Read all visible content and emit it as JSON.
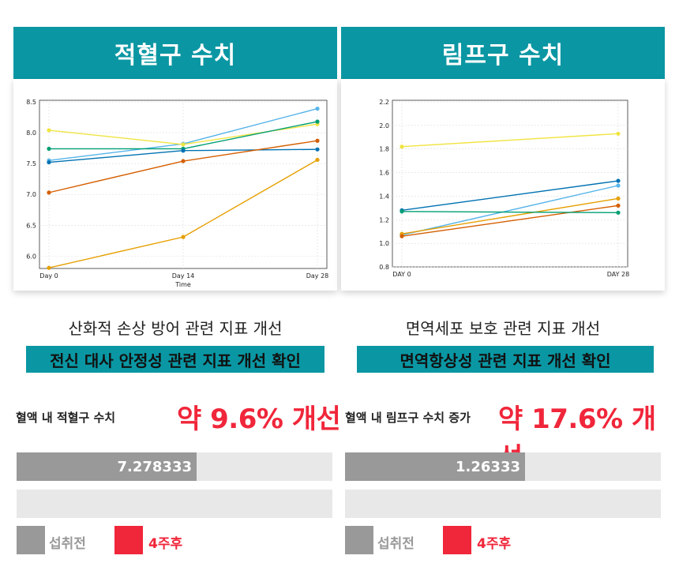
{
  "left": {
    "title": "적혈구 수치",
    "caption": "산화적 손상 방어 관련 지표 개선",
    "highlight": "전신 대사 안정성 관련 지표 개선 확인",
    "metric_label": "혈액 내 적혈구 수치",
    "metric_value": "약 9.6% 개선",
    "bar_before_label": "7.278333",
    "bar_before_fraction": 0.57,
    "bar_after_fraction": 0,
    "legend_before": "섭취전",
    "legend_after": "4주후"
  },
  "right": {
    "title": "림프구 수치",
    "caption": "면역세포 보호 관련 지표 개선",
    "highlight": "면역항상성 관련 지표 개선 확인",
    "metric_label": "혈액 내 림프구 수치 증가",
    "metric_value": "약 17.6% 개선",
    "bar_before_label": "1.26333",
    "bar_before_fraction": 0.57,
    "bar_after_fraction": 0,
    "legend_before": "섭취전",
    "legend_after": "4주후"
  },
  "colors": {
    "header": "#0a97a3",
    "accent": "#f0263a",
    "bar_before": "#999999",
    "bar_track": "#e8e8e8"
  },
  "chart_data": [
    {
      "type": "line",
      "categories": [
        "Day 0",
        "Day 14",
        "Day 28"
      ],
      "xlabel": "Time",
      "ylabel": "",
      "ylim": [
        5.8,
        8.5
      ],
      "yticks": [
        "6.0",
        "6.5",
        "7.0",
        "7.5",
        "8.0",
        "8.5"
      ],
      "grid": true,
      "series": [
        {
          "color": "#56b4e9",
          "values": [
            7.55,
            7.82,
            8.39
          ]
        },
        {
          "color": "#f0e442",
          "values": [
            8.04,
            7.81,
            8.14
          ]
        },
        {
          "color": "#009e73",
          "values": [
            7.74,
            7.74,
            8.18
          ]
        },
        {
          "color": "#0072b2",
          "values": [
            7.52,
            7.71,
            7.73
          ]
        },
        {
          "color": "#d55e00",
          "values": [
            7.03,
            7.54,
            7.87
          ]
        },
        {
          "color": "#e69f00",
          "values": [
            5.81,
            6.31,
            7.56
          ]
        }
      ]
    },
    {
      "type": "line",
      "categories": [
        "DAY 0",
        "DAY 28"
      ],
      "xlabel": "",
      "ylabel": "",
      "ylim": [
        0.8,
        2.2
      ],
      "yticks": [
        "0.8",
        "1.0",
        "1.2",
        "1.4",
        "1.6",
        "1.8",
        "2.0",
        "2.2"
      ],
      "grid": true,
      "series": [
        {
          "color": "#f0e442",
          "values": [
            1.82,
            1.93
          ]
        },
        {
          "color": "#0072b2",
          "values": [
            1.28,
            1.53
          ]
        },
        {
          "color": "#56b4e9",
          "values": [
            1.07,
            1.49
          ]
        },
        {
          "color": "#e69f00",
          "values": [
            1.08,
            1.38
          ]
        },
        {
          "color": "#d55e00",
          "values": [
            1.06,
            1.32
          ]
        },
        {
          "color": "#009e73",
          "values": [
            1.27,
            1.26
          ]
        }
      ]
    }
  ]
}
